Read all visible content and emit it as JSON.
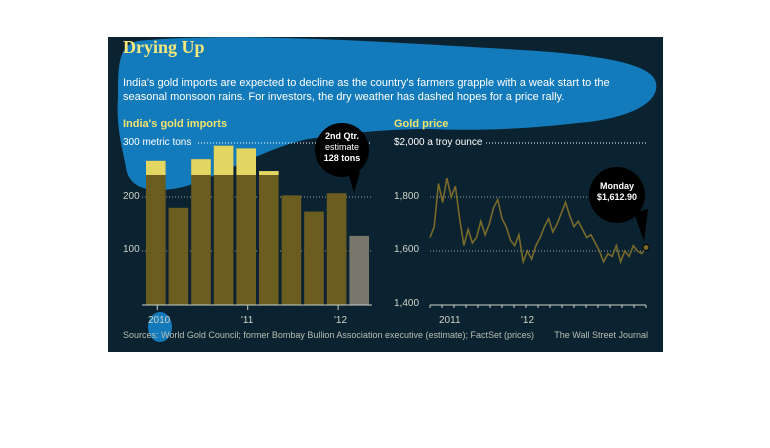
{
  "header": {
    "title": "Drying Up",
    "subtitle": "India's gold imports are expected to decline as the country's farmers grapple with a weak start to the seasonal monsoon rains. For investors, the dry weather has dashed hopes for a price rally."
  },
  "colors": {
    "background": "#0b2330",
    "bar": "#6b5d20",
    "bar_estimate": "#77776c",
    "line": "#7a6a2a",
    "highlight": "#f1e36a",
    "splash": "#1487cf"
  },
  "chart_data": [
    {
      "type": "bar",
      "title": "India's gold imports",
      "ylabel": "300 metric tons",
      "ylim": [
        0,
        300
      ],
      "yticks": [
        "300",
        "200",
        "100"
      ],
      "xtick_labels": [
        "2010",
        "'11",
        "'12"
      ],
      "categories": [
        "2010 Q1",
        "2010 Q2",
        "2010 Q3",
        "2010 Q4",
        "2011 Q1",
        "2011 Q2",
        "2011 Q3",
        "2011 Q4",
        "2012 Q1",
        "2012 Q2"
      ],
      "values": [
        267,
        180,
        270,
        295,
        290,
        248,
        203,
        173,
        207,
        128
      ],
      "estimate_index": 9,
      "annotation": {
        "line1": "2nd Qtr.",
        "line2": "estimate",
        "line3": "128 tons"
      },
      "grid": true
    },
    {
      "type": "line",
      "title": "Gold price",
      "ylabel": "$2,000 a troy ounce",
      "ylim": [
        1400,
        2000
      ],
      "yticks": [
        "1,800",
        "1,600",
        "1,400"
      ],
      "xtick_labels": [
        "2011",
        "'12"
      ],
      "y": [
        1650,
        1690,
        1850,
        1780,
        1870,
        1800,
        1840,
        1720,
        1620,
        1680,
        1630,
        1650,
        1710,
        1660,
        1700,
        1760,
        1790,
        1720,
        1690,
        1640,
        1620,
        1660,
        1560,
        1600,
        1570,
        1620,
        1650,
        1690,
        1720,
        1670,
        1700,
        1740,
        1780,
        1730,
        1690,
        1710,
        1680,
        1650,
        1660,
        1630,
        1600,
        1560,
        1590,
        1580,
        1620,
        1560,
        1600,
        1580,
        1620,
        1600,
        1590,
        1613
      ],
      "annotation": {
        "line1": "Monday",
        "line2": "$1,612.90"
      },
      "grid": true
    }
  ],
  "footer": {
    "source": "Sources: World Gold Council; former Bombay Bullion Association executive (estimate); FactSet (prices)",
    "credit": "The Wall Street Journal"
  }
}
